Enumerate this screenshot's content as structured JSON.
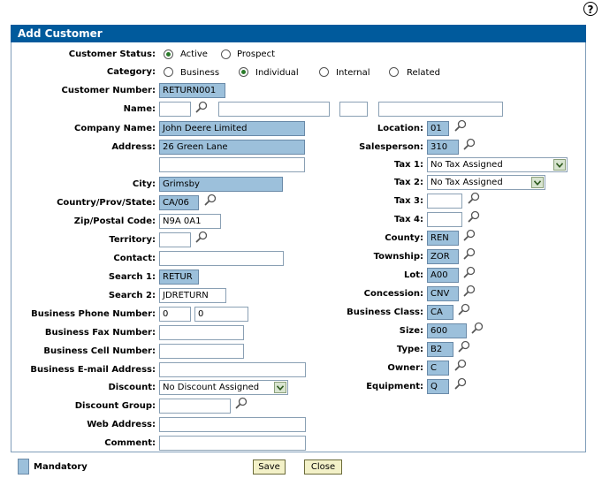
{
  "help_label": "?",
  "title": "Add Customer",
  "labels": {
    "status": "Customer Status:",
    "category": "Category:",
    "customer_number": "Customer Number:",
    "name": "Name:",
    "company_name": "Company Name:",
    "address": "Address:",
    "city": "City:",
    "country": "Country/Prov/State:",
    "zip": "Zip/Postal Code:",
    "territory": "Territory:",
    "contact": "Contact:",
    "search1": "Search 1:",
    "search2": "Search 2:",
    "phone": "Business Phone Number:",
    "fax": "Business Fax Number:",
    "cell": "Business Cell Number:",
    "email": "Business E-mail Address:",
    "discount": "Discount:",
    "discount_group": "Discount Group:",
    "web": "Web Address:",
    "comment": "Comment:",
    "location": "Location:",
    "salesperson": "Salesperson:",
    "tax1": "Tax 1:",
    "tax2": "Tax 2:",
    "tax3": "Tax 3:",
    "tax4": "Tax 4:",
    "county": "County:",
    "township": "Township:",
    "lot": "Lot:",
    "concession": "Concession:",
    "business_class": "Business Class:",
    "size": "Size:",
    "type": "Type:",
    "owner": "Owner:",
    "equipment": "Equipment:"
  },
  "status_options": [
    "Active",
    "Prospect"
  ],
  "category_options": [
    "Business",
    "Individual",
    "Internal",
    "Related"
  ],
  "values": {
    "customer_number": "RETURN001",
    "company_name": "John Deere Limited",
    "address1": "26 Green Lane",
    "city": "Grimsby",
    "country": "CA/06",
    "zip": "N9A 0A1",
    "search1": "RETUR",
    "search2": "JDRETURN",
    "phone_area": "0",
    "phone_number": "0",
    "discount": "No Discount Assigned",
    "location": "01",
    "salesperson": "310",
    "tax1": "No Tax Assigned",
    "tax2": "No Tax Assigned",
    "county": "REN",
    "township": "ZOR",
    "lot": "A00",
    "concession": "CNV",
    "business_class": "CA",
    "size": "600",
    "type": "B2",
    "owner": "C",
    "equipment": "Q"
  },
  "legend": "Mandatory",
  "buttons": {
    "save": "Save",
    "close": "Close"
  },
  "colors": {
    "titlebar": "#005a9c",
    "mandatory": "#9cc0db",
    "button": "#f3f1c8"
  }
}
